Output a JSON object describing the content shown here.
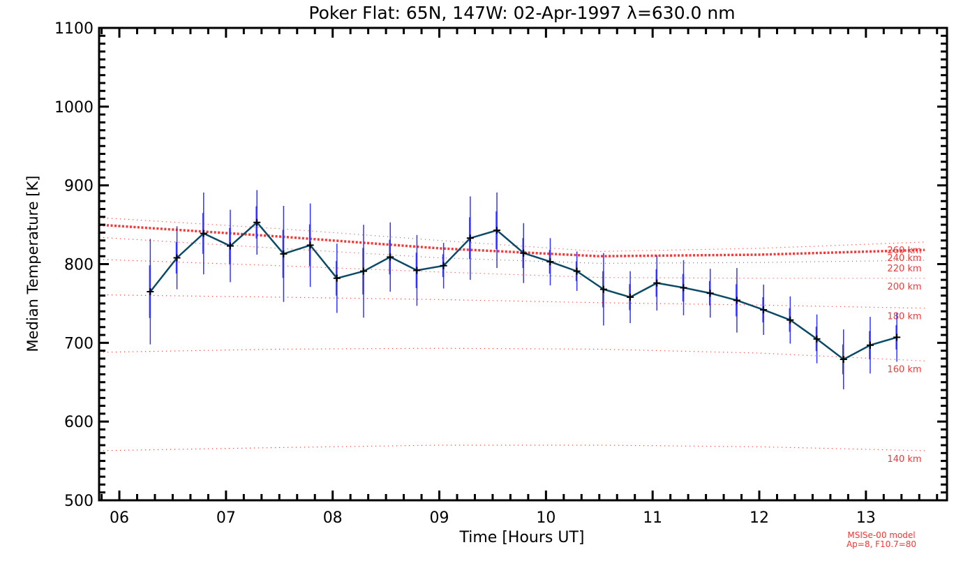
{
  "chart_data": {
    "type": "line",
    "title": "Poker Flat: 65N, 147W: 02-Apr-1997 λ=630.0 nm",
    "xlabel": "Time [Hours UT]",
    "ylabel": "Median Temperature [K]",
    "xlim": [
      5.81,
      13.76
    ],
    "ylim": [
      500,
      1100
    ],
    "x_ticks": [
      6,
      7,
      8,
      9,
      10,
      11,
      12,
      13
    ],
    "x_tick_labels": [
      "06",
      "07",
      "08",
      "09",
      "10",
      "11",
      "12",
      "13"
    ],
    "y_ticks": [
      500,
      600,
      700,
      800,
      900,
      1000,
      1100
    ],
    "y_tick_labels": [
      "500",
      "600",
      "700",
      "800",
      "900",
      "1000",
      "1100"
    ],
    "grid": false,
    "colors": {
      "data_line": "#0a4a66",
      "error_bar": "#3333ff",
      "model": "#ff3333",
      "axis": "#000000"
    },
    "series": [
      {
        "name": "Median Temperature",
        "x": [
          6.29,
          6.54,
          6.79,
          7.04,
          7.29,
          7.54,
          7.79,
          8.04,
          8.29,
          8.54,
          8.79,
          9.04,
          9.29,
          9.54,
          9.79,
          10.04,
          10.29,
          10.54,
          10.79,
          11.04,
          11.29,
          11.54,
          11.79,
          12.04,
          12.29,
          12.54,
          12.79,
          13.04,
          13.29
        ],
        "y": [
          765,
          808,
          839,
          823,
          853,
          813,
          824,
          782,
          791,
          809,
          792,
          798,
          833,
          843,
          814,
          803,
          791,
          768,
          758,
          776,
          770,
          763,
          754,
          742,
          729,
          705,
          679,
          697,
          707
        ],
        "error": [
          67,
          40,
          52,
          46,
          41,
          61,
          53,
          44,
          59,
          44,
          45,
          29,
          53,
          48,
          38,
          30,
          25,
          46,
          33,
          35,
          35,
          31,
          41,
          32,
          30,
          31,
          38,
          36,
          31
        ]
      }
    ],
    "model_lines": {
      "x": [
        5.81,
        7.5,
        9.0,
        10.5,
        12.0,
        13.55
      ],
      "lines": [
        {
          "label": "260 km",
          "y": [
            859,
            845,
            830,
            816,
            820,
            828
          ],
          "thick": false
        },
        {
          "label": "240 km",
          "y": [
            850,
            835,
            820,
            810,
            812,
            818
          ],
          "thick": true
        },
        {
          "label": "220 km",
          "y": [
            834,
            820,
            808,
            801,
            802,
            805
          ],
          "thick": false
        },
        {
          "label": "200 km",
          "y": [
            806,
            798,
            790,
            783,
            782,
            782
          ],
          "thick": false
        },
        {
          "label": "180 km",
          "y": [
            761,
            758,
            755,
            751,
            748,
            744
          ],
          "thick": false
        },
        {
          "label": "160 km",
          "y": [
            688,
            692,
            693,
            692,
            687,
            677
          ],
          "thick": false
        },
        {
          "label": "140 km",
          "y": [
            563,
            567,
            570,
            570,
            568,
            563
          ],
          "thick": false
        }
      ]
    },
    "annotations": [
      "MSISe-00 model",
      "Ap=8, F10.7=80"
    ]
  }
}
